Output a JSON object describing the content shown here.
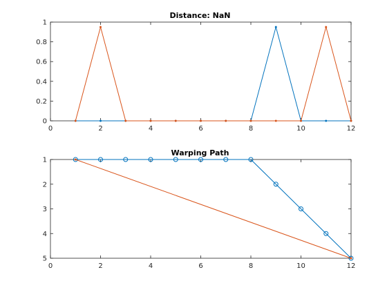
{
  "chart_data": [
    {
      "type": "line",
      "title": "Distance: NaN",
      "xlabel": "",
      "ylabel": "",
      "xlim": [
        0,
        12
      ],
      "ylim": [
        0,
        1
      ],
      "xticks": [
        0,
        2,
        4,
        6,
        8,
        10,
        12
      ],
      "yticks": [
        0,
        0.2,
        0.4,
        0.6,
        0.8,
        1
      ],
      "x_tick_labels": [
        "0",
        "2",
        "4",
        "6",
        "8",
        "10",
        "12"
      ],
      "y_tick_labels": [
        "0",
        "0.2",
        "0.4",
        "0.6",
        "0.8",
        "1"
      ],
      "y_reversed": false,
      "grid": false,
      "series": [
        {
          "color": "#0072BD",
          "marker": "dot",
          "x": [
            1,
            2,
            3,
            4,
            5,
            6,
            7,
            8,
            9,
            10,
            11,
            12
          ],
          "y": [
            0,
            0,
            0,
            0,
            0,
            0,
            0,
            0,
            0.95,
            0,
            0,
            0
          ]
        },
        {
          "color": "#D95319",
          "marker": "dot",
          "x": [
            1,
            2,
            3,
            4,
            5,
            6,
            7,
            8,
            9,
            10,
            11,
            12
          ],
          "y": [
            0,
            0.95,
            0,
            0,
            0,
            0,
            0,
            0,
            0,
            0,
            0.95,
            0
          ]
        }
      ]
    },
    {
      "type": "line",
      "title": "Warping Path",
      "xlabel": "",
      "ylabel": "",
      "xlim": [
        0,
        12
      ],
      "ylim": [
        1,
        5
      ],
      "xticks": [
        0,
        2,
        4,
        6,
        8,
        10,
        12
      ],
      "yticks": [
        1,
        2,
        3,
        4,
        5
      ],
      "x_tick_labels": [
        "0",
        "2",
        "4",
        "6",
        "8",
        "10",
        "12"
      ],
      "y_tick_labels": [
        "1",
        "2",
        "3",
        "4",
        "5"
      ],
      "y_reversed": true,
      "grid": false,
      "series": [
        {
          "color": "#0072BD",
          "marker": "circle",
          "x": [
            1,
            2,
            3,
            4,
            5,
            6,
            7,
            8,
            9,
            10,
            11,
            12
          ],
          "y": [
            1,
            1,
            1,
            1,
            1,
            1,
            1,
            1,
            2,
            3,
            4,
            5
          ]
        },
        {
          "color": "#D95319",
          "marker": "dot",
          "x": [
            1,
            12
          ],
          "y": [
            1,
            5
          ]
        }
      ]
    }
  ]
}
